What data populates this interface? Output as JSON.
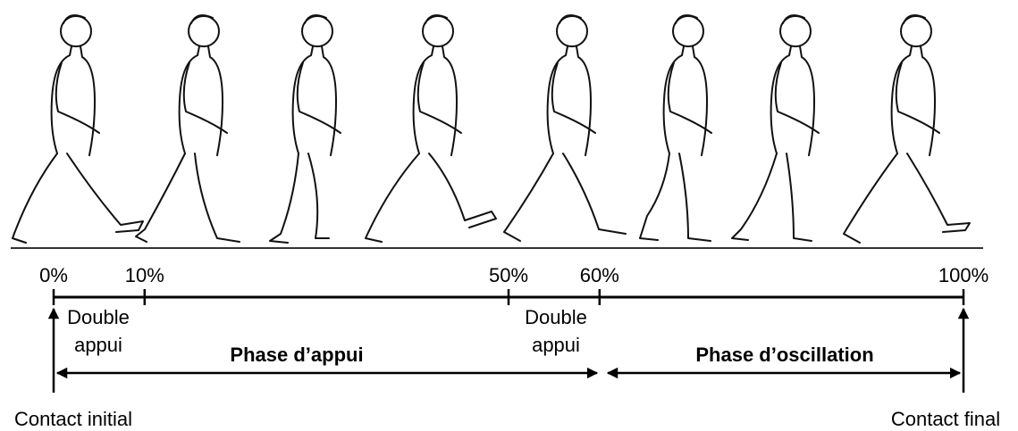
{
  "timeline": {
    "ticks": [
      {
        "value": 0,
        "label": "0%"
      },
      {
        "value": 10,
        "label": "10%"
      },
      {
        "value": 50,
        "label": "50%"
      },
      {
        "value": 60,
        "label": "60%"
      },
      {
        "value": 100,
        "label": "100%"
      }
    ]
  },
  "double_support": [
    {
      "lines": [
        "Double",
        "appui"
      ]
    },
    {
      "lines": [
        "Double",
        "appui"
      ]
    }
  ],
  "phases": [
    {
      "label": "Phase d’appui"
    },
    {
      "label": "Phase d’oscillation"
    }
  ],
  "events": [
    {
      "label": "Contact initial"
    },
    {
      "label": "Contact final"
    }
  ]
}
